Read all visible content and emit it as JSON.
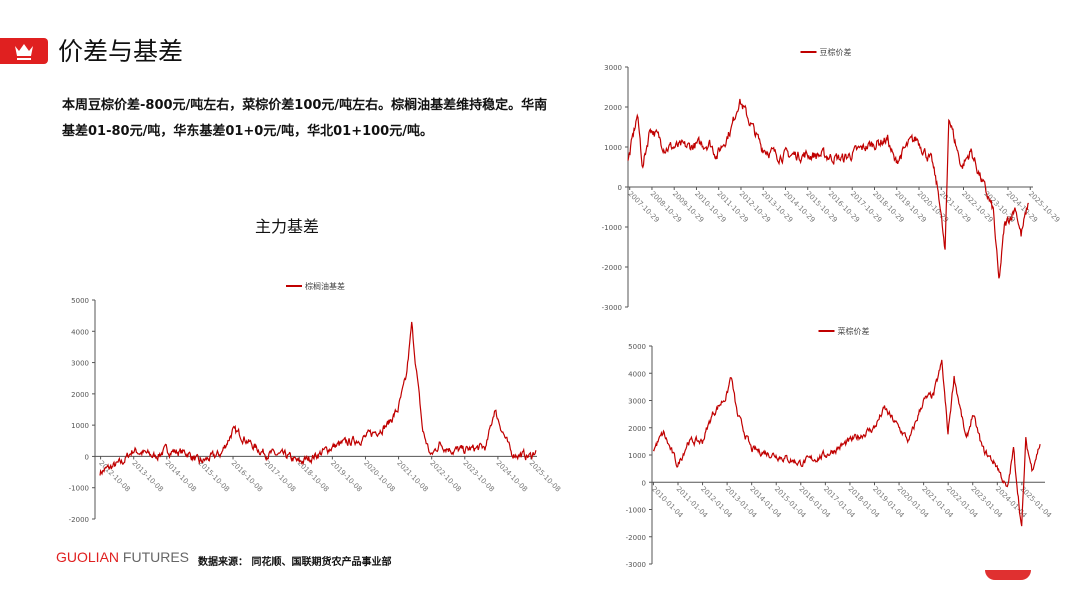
{
  "header": {
    "title": "价差与基差",
    "icon": "crown-icon",
    "accent": "#e02020"
  },
  "summary": "本周豆棕价差-800元/吨左右，菜棕价差100元/吨左右。棕榈油基差维持稳定。华南基差01-80元/吨，华东基差01+0元/吨，华北01+100元/吨。",
  "footer": {
    "logo_a": "GUOLIAN",
    "logo_b": " FUTURES",
    "source": "数据来源：  同花顺、国联期货农产品事业部"
  },
  "chart_data": [
    {
      "type": "line",
      "title": "主力基差",
      "legend": "棕榈油基差",
      "legend_position": "top",
      "color": "#c00000",
      "ylim": [
        -2000,
        5000
      ],
      "yticks": [
        -2000,
        -1000,
        0,
        1000,
        2000,
        3000,
        4000,
        5000
      ],
      "xticks": [
        "2012-10-08",
        "2013-10-08",
        "2014-10-08",
        "2015-10-08",
        "2016-10-08",
        "2017-10-08",
        "2018-10-08",
        "2019-10-08",
        "2020-10-08",
        "2021-10-08",
        "2022-10-08",
        "2023-10-08",
        "2024-10-08",
        "2025-10-08"
      ],
      "points": [
        [
          "2012-10",
          -500
        ],
        [
          "2013-06",
          -200
        ],
        [
          "2013-10",
          200
        ],
        [
          "2014-06",
          0
        ],
        [
          "2014-10",
          200
        ],
        [
          "2015-06",
          100
        ],
        [
          "2015-10",
          -200
        ],
        [
          "2016-06",
          100
        ],
        [
          "2016-10",
          800
        ],
        [
          "2017-01",
          700
        ],
        [
          "2017-06",
          300
        ],
        [
          "2017-10",
          100
        ],
        [
          "2018-06",
          0
        ],
        [
          "2018-10",
          -200
        ],
        [
          "2019-06",
          100
        ],
        [
          "2019-10",
          300
        ],
        [
          "2020-06",
          500
        ],
        [
          "2020-10",
          600
        ],
        [
          "2021-06",
          1000
        ],
        [
          "2021-10",
          1500
        ],
        [
          "2022-01",
          2500
        ],
        [
          "2022-03",
          4200
        ],
        [
          "2022-05",
          2500
        ],
        [
          "2022-07",
          800
        ],
        [
          "2022-10",
          0
        ],
        [
          "2023-01",
          400
        ],
        [
          "2023-06",
          200
        ],
        [
          "2023-10",
          200
        ],
        [
          "2024-06",
          300
        ],
        [
          "2024-09",
          1500
        ],
        [
          "2024-12",
          800
        ],
        [
          "2025-03",
          100
        ],
        [
          "2025-10",
          0
        ],
        [
          "2025-12",
          200
        ]
      ]
    },
    {
      "type": "line",
      "legend": "豆棕价差",
      "legend_position": "top",
      "color": "#c00000",
      "ylim": [
        -3000,
        3000
      ],
      "yticks": [
        -3000,
        -2000,
        -1000,
        0,
        1000,
        2000,
        3000
      ],
      "xticks": [
        "2007-10-29",
        "2008-10-29",
        "2009-10-29",
        "2010-10-29",
        "2011-10-29",
        "2012-10-29",
        "2013-10-29",
        "2014-10-29",
        "2015-10-29",
        "2016-10-29",
        "2017-10-29",
        "2018-10-29",
        "2019-10-29",
        "2020-10-29",
        "2021-10-29",
        "2022-10-29",
        "2023-10-29",
        "2024-10-29",
        "2025-10-29"
      ],
      "points": [
        [
          "2007-10",
          600
        ],
        [
          "2008-03",
          1800
        ],
        [
          "2008-06",
          500
        ],
        [
          "2008-10",
          1500
        ],
        [
          "2009-06",
          1000
        ],
        [
          "2010-06",
          1000
        ],
        [
          "2011-06",
          1100
        ],
        [
          "2011-10",
          800
        ],
        [
          "2012-06",
          1500
        ],
        [
          "2012-10",
          2200
        ],
        [
          "2013-03",
          1700
        ],
        [
          "2013-10",
          1000
        ],
        [
          "2014-06",
          800
        ],
        [
          "2015-06",
          800
        ],
        [
          "2016-06",
          800
        ],
        [
          "2017-06",
          700
        ],
        [
          "2018-06",
          1000
        ],
        [
          "2019-06",
          1200
        ],
        [
          "2019-10",
          600
        ],
        [
          "2020-06",
          1100
        ],
        [
          "2020-10",
          1200
        ],
        [
          "2021-06",
          600
        ],
        [
          "2021-10",
          -300
        ],
        [
          "2022-01",
          -1700
        ],
        [
          "2022-03",
          1800
        ],
        [
          "2022-06",
          1200
        ],
        [
          "2022-10",
          500
        ],
        [
          "2023-03",
          900
        ],
        [
          "2023-10",
          0
        ],
        [
          "2024-03",
          -600
        ],
        [
          "2024-06",
          -2400
        ],
        [
          "2024-09",
          -1000
        ],
        [
          "2025-03",
          -500
        ],
        [
          "2025-06",
          -1200
        ],
        [
          "2025-10",
          -400
        ]
      ]
    },
    {
      "type": "line",
      "legend": "菜棕价差",
      "legend_position": "top",
      "color": "#c00000",
      "ylim": [
        -3000,
        5000
      ],
      "yticks": [
        -3000,
        -2000,
        -1000,
        0,
        1000,
        2000,
        3000,
        4000,
        5000
      ],
      "xticks": [
        "2010-01-04",
        "2011-01-04",
        "2012-01-04",
        "2013-01-04",
        "2014-01-04",
        "2015-01-04",
        "2016-01-04",
        "2017-01-04",
        "2018-01-04",
        "2019-01-04",
        "2020-01-04",
        "2021-01-04",
        "2022-01-04",
        "2023-01-04",
        "2024-01-04",
        "2025-01-04"
      ],
      "points": [
        [
          "2010-01",
          1200
        ],
        [
          "2010-06",
          1800
        ],
        [
          "2011-01",
          600
        ],
        [
          "2011-06",
          1500
        ],
        [
          "2012-01",
          1500
        ],
        [
          "2012-06",
          2500
        ],
        [
          "2013-01",
          3200
        ],
        [
          "2013-03",
          3900
        ],
        [
          "2013-06",
          2500
        ],
        [
          "2014-01",
          1200
        ],
        [
          "2015-01",
          1000
        ],
        [
          "2016-01",
          700
        ],
        [
          "2017-01",
          1000
        ],
        [
          "2018-01",
          1500
        ],
        [
          "2019-01",
          2000
        ],
        [
          "2019-06",
          2700
        ],
        [
          "2020-01",
          2000
        ],
        [
          "2020-06",
          1500
        ],
        [
          "2021-01",
          3000
        ],
        [
          "2021-06",
          3200
        ],
        [
          "2021-10",
          4400
        ],
        [
          "2022-01",
          1800
        ],
        [
          "2022-04",
          3900
        ],
        [
          "2022-10",
          1500
        ],
        [
          "2023-01",
          2500
        ],
        [
          "2023-06",
          1200
        ],
        [
          "2024-01",
          600
        ],
        [
          "2024-06",
          -300
        ],
        [
          "2024-09",
          1200
        ],
        [
          "2025-01",
          -1700
        ],
        [
          "2025-03",
          1500
        ],
        [
          "2025-06",
          500
        ],
        [
          "2025-10",
          1400
        ]
      ]
    }
  ]
}
